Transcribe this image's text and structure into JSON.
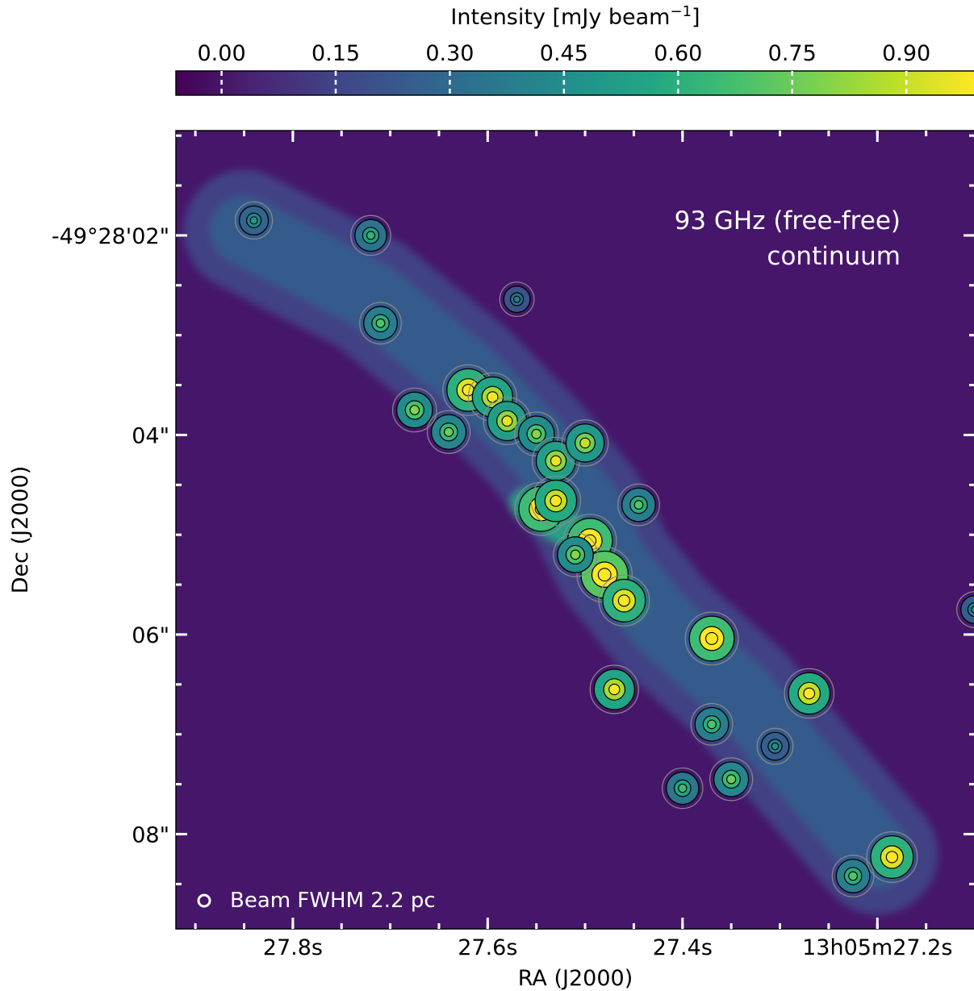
{
  "chart_data": {
    "type": "heatmap",
    "colorbar": {
      "label": "Intensity [mJy beam",
      "label_exp": "−1",
      "label_close": "]",
      "colormap": "viridis",
      "vmin": -0.06,
      "vmax": 0.99,
      "ticks": [
        0.0,
        0.15,
        0.3,
        0.45,
        0.6,
        0.75,
        0.9
      ],
      "tick_labels": [
        "0.00",
        "0.15",
        "0.30",
        "0.45",
        "0.60",
        "0.75",
        "0.90"
      ],
      "placement": "top"
    },
    "xlabel": "RA (J2000)",
    "ylabel": "Dec (J2000)",
    "x_ticks": [
      {
        "value": 27.8,
        "label": "27.8s"
      },
      {
        "value": 27.6,
        "label": "27.6s"
      },
      {
        "value": 27.4,
        "label": "27.4s"
      },
      {
        "value": 27.2,
        "label": "13h05m27.2s"
      }
    ],
    "x_range": [
      27.92,
      27.1
    ],
    "y_ticks": [
      {
        "value": 2,
        "label": "-49°28'02\""
      },
      {
        "value": 4,
        "label": "04\""
      },
      {
        "value": 6,
        "label": "06\""
      },
      {
        "value": 8,
        "label": "08\""
      }
    ],
    "y_range": [
      0.95,
      8.95
    ],
    "annotation": {
      "line1": "93 GHz (free-free)",
      "line2": "continuum"
    },
    "beam_label": "Beam FWHM 2.2 pc",
    "background_level": 0.05,
    "sources": [
      {
        "ra": 27.84,
        "dec": 1.85,
        "peak": 0.5
      },
      {
        "ra": 27.72,
        "dec": 2.0,
        "peak": 0.62
      },
      {
        "ra": 27.71,
        "dec": 2.88,
        "peak": 0.7
      },
      {
        "ra": 27.57,
        "dec": 2.64,
        "peak": 0.38
      },
      {
        "ra": 27.62,
        "dec": 3.55,
        "peak": 1.1
      },
      {
        "ra": 27.595,
        "dec": 3.62,
        "peak": 1.0
      },
      {
        "ra": 27.675,
        "dec": 3.75,
        "peak": 0.8
      },
      {
        "ra": 27.64,
        "dec": 3.97,
        "peak": 0.75
      },
      {
        "ra": 27.58,
        "dec": 3.86,
        "peak": 0.95
      },
      {
        "ra": 27.55,
        "dec": 3.99,
        "peak": 0.8
      },
      {
        "ra": 27.53,
        "dec": 4.26,
        "peak": 0.95
      },
      {
        "ra": 27.5,
        "dec": 4.08,
        "peak": 0.9
      },
      {
        "ra": 27.545,
        "dec": 4.74,
        "peak": 1.2
      },
      {
        "ra": 27.53,
        "dec": 4.66,
        "peak": 1.05
      },
      {
        "ra": 27.445,
        "dec": 4.7,
        "peak": 0.7
      },
      {
        "ra": 27.495,
        "dec": 5.06,
        "peak": 1.2
      },
      {
        "ra": 27.48,
        "dec": 5.4,
        "peak": 1.3
      },
      {
        "ra": 27.46,
        "dec": 5.66,
        "peak": 1.1
      },
      {
        "ra": 27.51,
        "dec": 5.2,
        "peak": 0.8
      },
      {
        "ra": 27.47,
        "dec": 6.55,
        "peak": 1.0
      },
      {
        "ra": 27.37,
        "dec": 6.04,
        "peak": 1.2
      },
      {
        "ra": 27.27,
        "dec": 6.59,
        "peak": 1.05
      },
      {
        "ra": 27.37,
        "dec": 6.9,
        "peak": 0.7
      },
      {
        "ra": 27.35,
        "dec": 7.45,
        "peak": 0.75
      },
      {
        "ra": 27.4,
        "dec": 7.54,
        "peak": 0.65
      },
      {
        "ra": 27.305,
        "dec": 7.12,
        "peak": 0.45
      },
      {
        "ra": 27.225,
        "dec": 8.42,
        "peak": 0.7
      },
      {
        "ra": 27.185,
        "dec": 8.23,
        "peak": 1.1
      },
      {
        "ra": 27.1,
        "dec": 5.75,
        "peak": 0.45
      }
    ]
  }
}
